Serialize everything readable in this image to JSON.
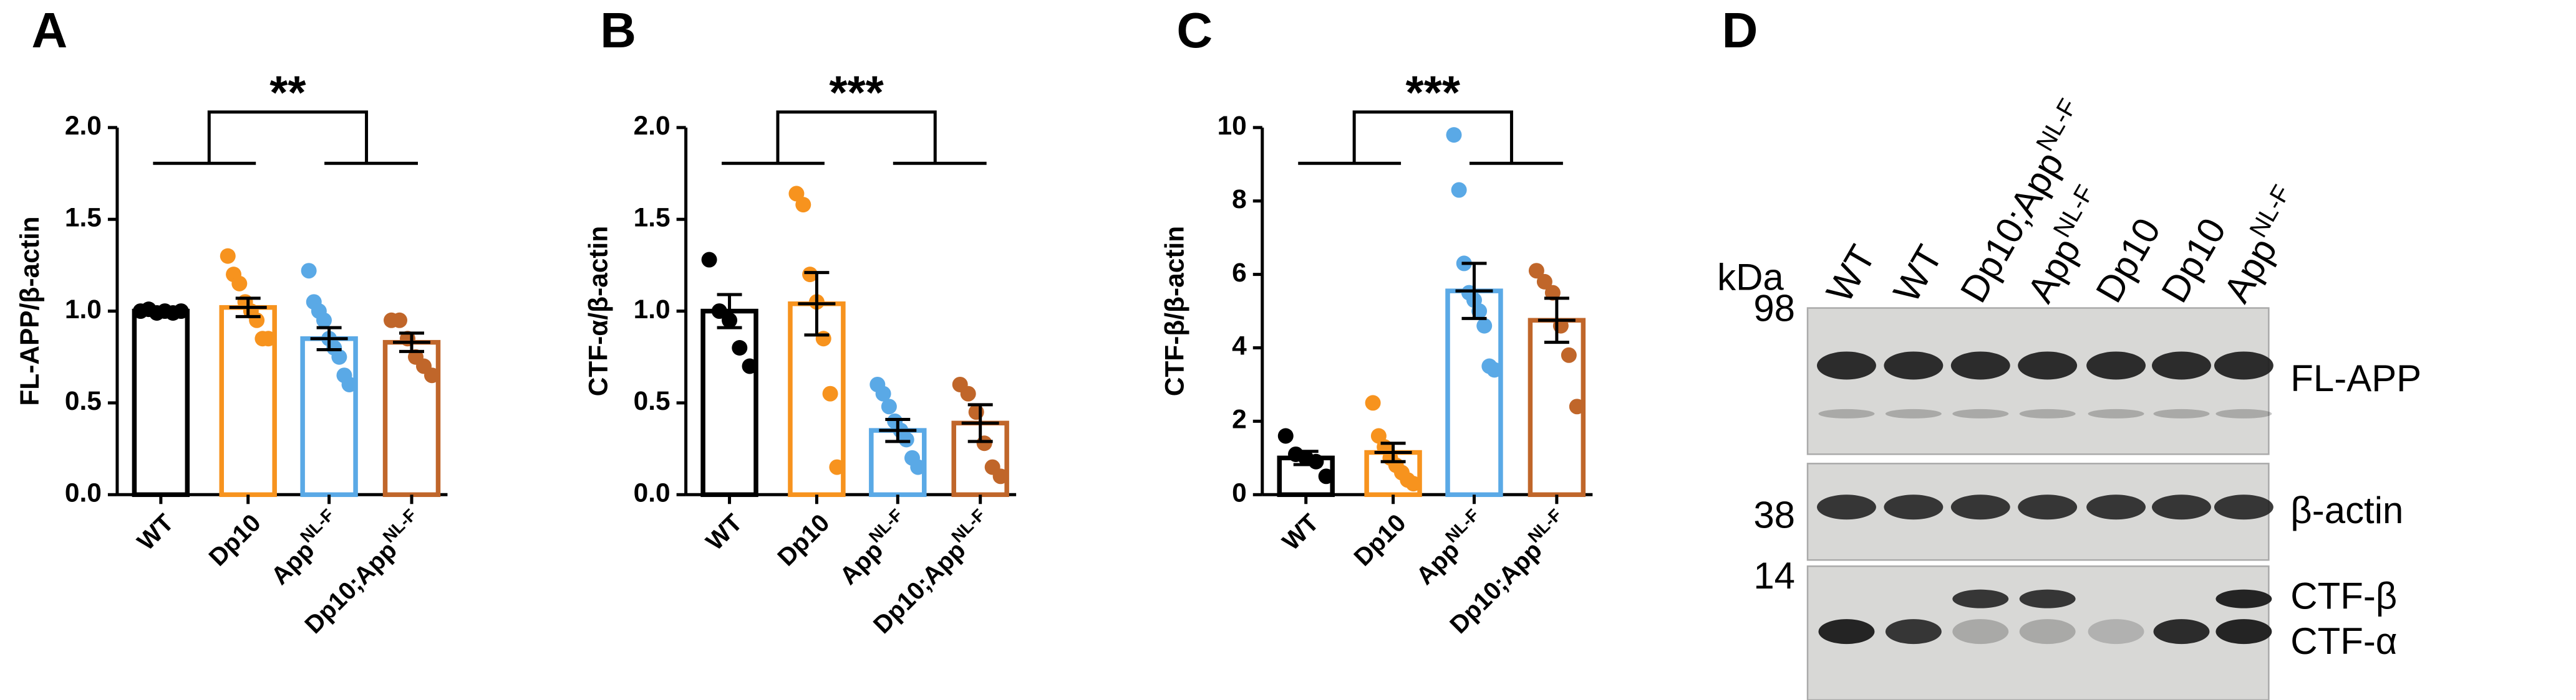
{
  "chart_data": [
    {
      "type": "bar",
      "panel": "A",
      "ylabel": "FL-APP/β-actin",
      "categories": [
        "WT",
        "Dp10",
        "App",
        "Dp10;App"
      ],
      "category_superscripts": [
        null,
        null,
        "NL-F",
        "NL-F"
      ],
      "colors": [
        "#000000",
        "#f7931e",
        "#5aa9e6",
        "#c0662a"
      ],
      "values": [
        1.0,
        1.02,
        0.85,
        0.83
      ],
      "errors": [
        0.01,
        0.05,
        0.06,
        0.05
      ],
      "points": [
        [
          1.0,
          1.01,
          0.99,
          1.0,
          0.99,
          1.0
        ],
        [
          1.3,
          1.2,
          1.15,
          1.05,
          1.0,
          0.95,
          0.85,
          0.85
        ],
        [
          1.22,
          1.05,
          1.0,
          0.95,
          0.85,
          0.8,
          0.75,
          0.65,
          0.6
        ],
        [
          0.95,
          0.95,
          0.85,
          0.75,
          0.7,
          0.65
        ]
      ],
      "ylim": [
        0,
        2
      ],
      "yticks": [
        {
          "value": 0,
          "label": "0.0"
        },
        0.5,
        {
          "value": 1,
          "label": "1.0"
        },
        1.5,
        {
          "value": 2,
          "label": "2.0"
        }
      ],
      "significance": "**"
    },
    {
      "type": "bar",
      "panel": "B",
      "ylabel": "CTF-α/β-actin",
      "categories": [
        "WT",
        "Dp10",
        "App",
        "Dp10;App"
      ],
      "category_superscripts": [
        null,
        null,
        "NL-F",
        "NL-F"
      ],
      "colors": [
        "#000000",
        "#f7931e",
        "#5aa9e6",
        "#c0662a"
      ],
      "values": [
        1.0,
        1.04,
        0.35,
        0.39
      ],
      "errors": [
        0.09,
        0.17,
        0.06,
        0.1
      ],
      "points": [
        [
          1.28,
          1.0,
          0.95,
          0.8,
          0.7
        ],
        [
          1.64,
          1.58,
          1.2,
          1.05,
          0.85,
          0.55,
          0.15
        ],
        [
          0.6,
          0.55,
          0.48,
          0.4,
          0.35,
          0.3,
          0.2,
          0.15
        ],
        [
          0.6,
          0.55,
          0.45,
          0.28,
          0.15,
          0.1
        ]
      ],
      "ylim": [
        0,
        2
      ],
      "yticks": [
        {
          "value": 0,
          "label": "0.0"
        },
        0.5,
        {
          "value": 1,
          "label": "1.0"
        },
        1.5,
        {
          "value": 2,
          "label": "2.0"
        }
      ],
      "significance": "***"
    },
    {
      "type": "bar",
      "panel": "C",
      "ylabel": "CTF-β/β-actin",
      "categories": [
        "WT",
        "Dp10",
        "App",
        "Dp10;App"
      ],
      "category_superscripts": [
        null,
        null,
        "NL-F",
        "NL-F"
      ],
      "colors": [
        "#000000",
        "#f7931e",
        "#5aa9e6",
        "#c0662a"
      ],
      "values": [
        1.0,
        1.15,
        5.55,
        4.75
      ],
      "errors": [
        0.18,
        0.25,
        0.75,
        0.6
      ],
      "points": [
        [
          1.6,
          1.1,
          1.0,
          0.9,
          0.5
        ],
        [
          2.5,
          1.6,
          1.3,
          1.0,
          0.8,
          0.6,
          0.4,
          0.3
        ],
        [
          9.8,
          8.3,
          6.3,
          5.5,
          5.3,
          5.0,
          4.6,
          3.5,
          3.4
        ],
        [
          6.1,
          5.8,
          5.5,
          4.6,
          3.8,
          2.4
        ]
      ],
      "ylim": [
        0,
        10
      ],
      "yticks": [
        0,
        2,
        4,
        6,
        8,
        10
      ],
      "significance": "***"
    }
  ],
  "blot": {
    "panel": "D",
    "unit": "kDa",
    "markers": [
      98,
      38,
      14
    ],
    "lanes": [
      "WT",
      "WT",
      "Dp10;App",
      "App",
      "Dp10",
      "Dp10",
      "App"
    ],
    "lane_superscripts": [
      null,
      null,
      "NL-F",
      "NL-F",
      null,
      null,
      "NL-F"
    ],
    "bands": [
      "FL-APP",
      "β-actin",
      "CTF-β",
      "CTF-α"
    ]
  }
}
